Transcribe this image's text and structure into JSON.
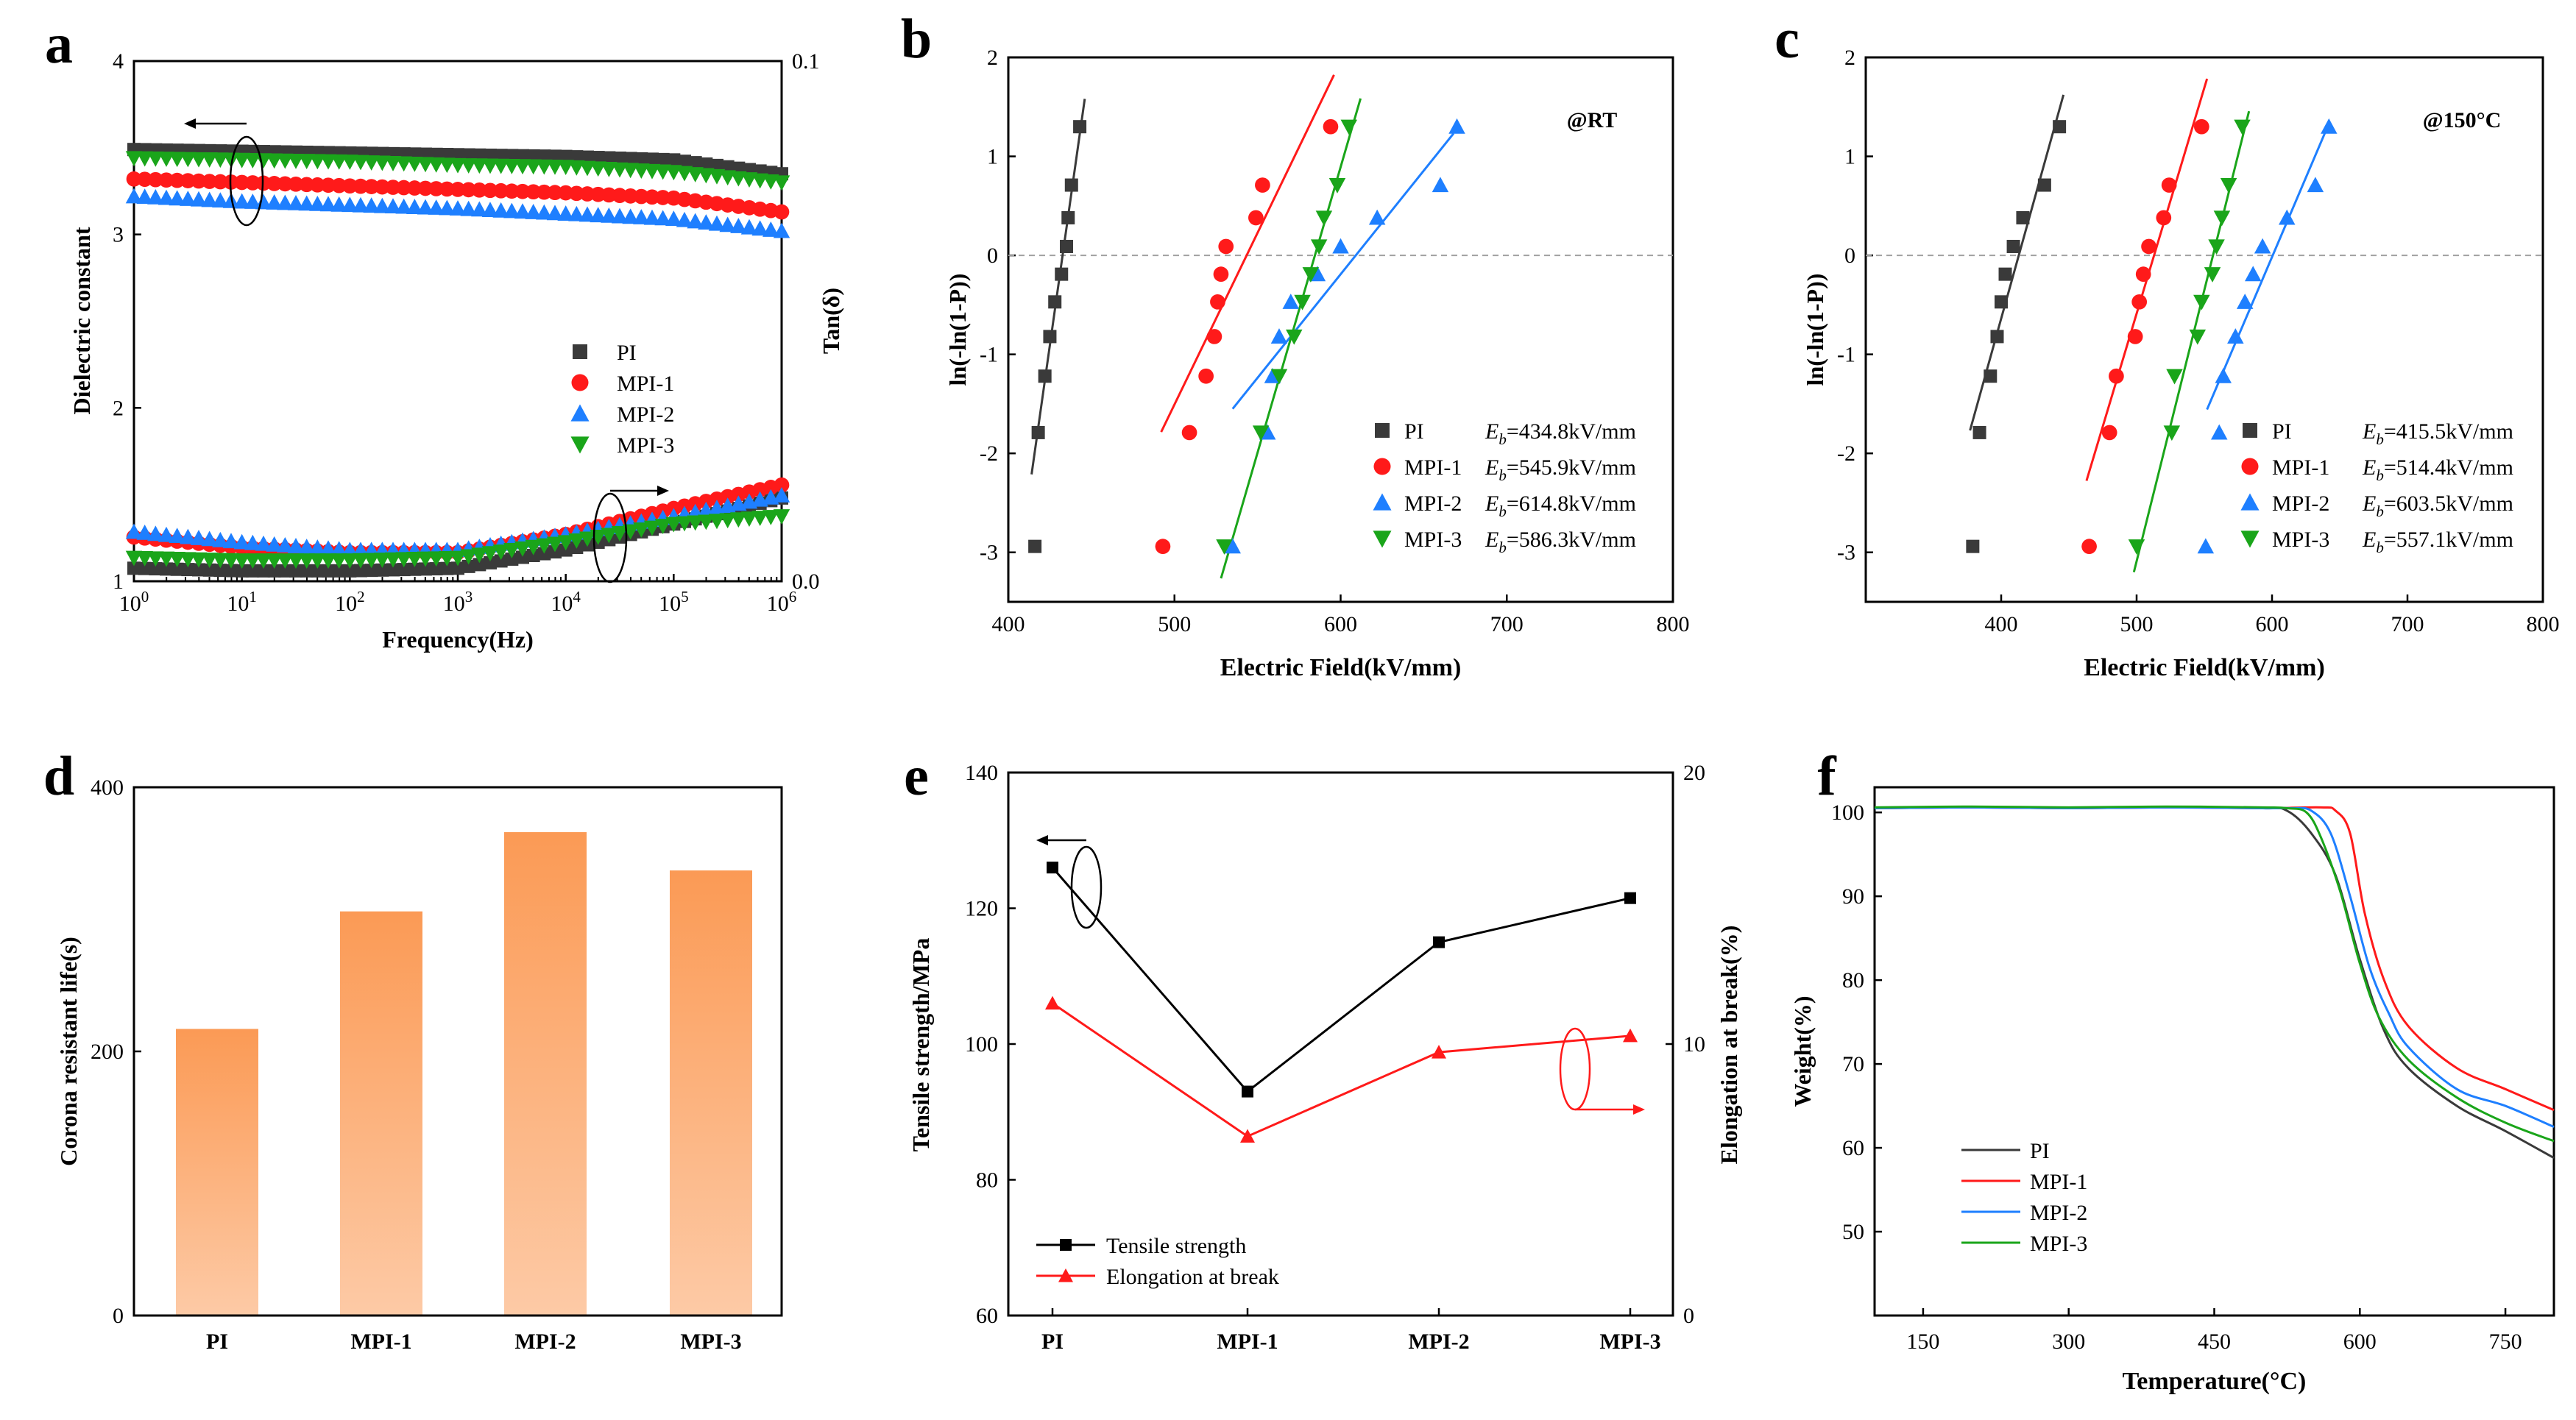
{
  "chart_data": [
    {
      "panel": "a",
      "type": "scatter",
      "xlabel": "Frequency(Hz)",
      "ylabel": "Dielectric constant",
      "ylabel_right": "Tan(δ)",
      "xscale": "log",
      "xlim": [
        1,
        1000000
      ],
      "ylim": [
        1,
        4
      ],
      "ylim_right": [
        0.0,
        0.1
      ],
      "x_ticks": [
        {
          "base": "10",
          "exp": "0"
        },
        {
          "base": "10",
          "exp": "1"
        },
        {
          "base": "10",
          "exp": "2"
        },
        {
          "base": "10",
          "exp": "3"
        },
        {
          "base": "10",
          "exp": "4"
        },
        {
          "base": "10",
          "exp": "5"
        },
        {
          "base": "10",
          "exp": "6"
        }
      ],
      "y_ticks": [
        "1",
        "2",
        "3",
        "4"
      ],
      "y_ticks_right": [
        "0.0",
        "0.1"
      ],
      "legend": [
        "PI",
        "MPI-1",
        "MPI-2",
        "MPI-3"
      ],
      "series": [
        {
          "name": "PI",
          "color": "#3a3a3a",
          "marker": "square",
          "dk": [
            3.49,
            3.48,
            3.47,
            3.46,
            3.45,
            3.43,
            3.35
          ],
          "tan": [
            0.0025,
            0.002,
            0.002,
            0.0025,
            0.006,
            0.011,
            0.016
          ]
        },
        {
          "name": "MPI-1",
          "color": "#ff1a1a",
          "marker": "circle",
          "dk": [
            3.32,
            3.3,
            3.28,
            3.26,
            3.24,
            3.21,
            3.13
          ],
          "tan": [
            0.0085,
            0.0065,
            0.0055,
            0.0055,
            0.009,
            0.014,
            0.0185
          ]
        },
        {
          "name": "MPI-2",
          "color": "#1e7fff",
          "marker": "triangle-up",
          "dk": [
            3.22,
            3.19,
            3.17,
            3.15,
            3.12,
            3.09,
            3.02
          ],
          "tan": [
            0.0095,
            0.0075,
            0.006,
            0.006,
            0.009,
            0.0125,
            0.0165
          ]
        },
        {
          "name": "MPI-3",
          "color": "#1aa51a",
          "marker": "triangle-down",
          "dk": [
            3.44,
            3.43,
            3.42,
            3.4,
            3.39,
            3.36,
            3.3
          ],
          "tan": [
            0.0045,
            0.004,
            0.004,
            0.0045,
            0.0075,
            0.011,
            0.0125
          ]
        }
      ]
    },
    {
      "panel": "b",
      "type": "scatter",
      "annotation": "@RT",
      "xlabel": "Electric Field(kV/mm)",
      "ylabel": "ln(-ln(1-P))",
      "xlim": [
        400,
        800
      ],
      "ylim": [
        -3.5,
        2
      ],
      "x_ticks": [
        "400",
        "500",
        "600",
        "700",
        "800"
      ],
      "y_ticks": [
        "2",
        "1",
        "0",
        "-1",
        "-2",
        "-3"
      ],
      "y_probs": [
        -2.94,
        -1.79,
        -1.22,
        -0.82,
        -0.47,
        -0.19,
        0.09,
        0.38,
        0.71,
        1.3
      ],
      "eb_prefix": "E",
      "eb_sub": "b",
      "series": [
        {
          "name": "PI",
          "eb": "=434.8kV/mm",
          "color": "#3a3a3a",
          "marker": "square",
          "x": [
            416,
            418,
            422,
            425,
            428,
            432,
            435,
            436,
            438,
            443
          ],
          "fit_x": [
            414,
            446
          ]
        },
        {
          "name": "MPI-1",
          "eb": "=545.9kV/mm",
          "color": "#ff1a1a",
          "marker": "circle",
          "x": [
            493,
            509,
            519,
            524,
            526,
            528,
            531,
            549,
            553,
            594
          ],
          "fit_x": [
            492,
            596
          ]
        },
        {
          "name": "MPI-2",
          "eb": "=614.8kV/mm",
          "color": "#1e7fff",
          "marker": "triangle-up",
          "x": [
            535,
            556,
            559,
            563,
            570,
            586,
            600,
            622,
            660,
            670
          ],
          "fit_x": [
            535,
            668
          ]
        },
        {
          "name": "MPI-3",
          "eb": "=586.3kV/mm",
          "color": "#1aa51a",
          "marker": "triangle-down",
          "x": [
            530,
            552,
            563,
            572,
            577,
            582,
            587,
            590,
            598,
            605
          ],
          "fit_x": [
            528,
            612
          ]
        }
      ]
    },
    {
      "panel": "c",
      "type": "scatter",
      "annotation": "@150°C",
      "xlabel": "Electric Field(kV/mm)",
      "ylabel": "ln(-ln(1-P))",
      "xlim": [
        300,
        800
      ],
      "ylim": [
        -3.5,
        2
      ],
      "x_ticks": [
        "400",
        "500",
        "600",
        "700",
        "800"
      ],
      "y_ticks": [
        "2",
        "1",
        "0",
        "-1",
        "-2",
        "-3"
      ],
      "y_probs": [
        -2.94,
        -1.79,
        -1.22,
        -0.82,
        -0.47,
        -0.19,
        0.09,
        0.38,
        0.71,
        1.3
      ],
      "eb_prefix": "E",
      "eb_sub": "b",
      "series": [
        {
          "name": "PI",
          "eb": "=415.5kV/mm",
          "color": "#3a3a3a",
          "marker": "square",
          "x": [
            379,
            384,
            392,
            397,
            400,
            403,
            409,
            416,
            432,
            443
          ],
          "fit_x": [
            377,
            446
          ]
        },
        {
          "name": "MPI-1",
          "eb": "=514.4kV/mm",
          "color": "#ff1a1a",
          "marker": "circle",
          "x": [
            465,
            480,
            485,
            499,
            502,
            505,
            509,
            520,
            524,
            548
          ],
          "fit_x": [
            463,
            552
          ]
        },
        {
          "name": "MPI-2",
          "eb": "=603.5kV/mm",
          "color": "#1e7fff",
          "marker": "triangle-up",
          "x": [
            551,
            561,
            564,
            573,
            580,
            586,
            593,
            611,
            632,
            642
          ],
          "fit_x": [
            552,
            641
          ]
        },
        {
          "name": "MPI-3",
          "eb": "=557.1kV/mm",
          "color": "#1aa51a",
          "marker": "triangle-down",
          "x": [
            500,
            526,
            528,
            545,
            548,
            556,
            559,
            563,
            568,
            578
          ],
          "fit_x": [
            498,
            583
          ]
        }
      ]
    },
    {
      "panel": "d",
      "type": "bar",
      "ylabel": "Corona resistant life(s)",
      "ylim": [
        0,
        400
      ],
      "y_ticks": [
        "0",
        "200",
        "400"
      ],
      "categories": [
        "PI",
        "MPI-1",
        "MPI-2",
        "MPI-3"
      ],
      "values": [
        217,
        306,
        366,
        337
      ]
    },
    {
      "panel": "e",
      "type": "line",
      "ylabel": "Tensile strength/MPa",
      "ylabel_right": "Elongation at break(%)",
      "categories": [
        "PI",
        "MPI-1",
        "MPI-2",
        "MPI-3"
      ],
      "ylim": [
        60,
        140
      ],
      "ylim_right": [
        0,
        20
      ],
      "y_ticks": [
        "60",
        "80",
        "100",
        "120",
        "140"
      ],
      "y_ticks_right": [
        "0",
        "10",
        "20"
      ],
      "series": [
        {
          "name": "Tensile strength",
          "color": "#000000",
          "marker": "square",
          "axis": "left",
          "values": [
            126,
            93,
            115,
            121.5
          ]
        },
        {
          "name": "Elongation at break",
          "color": "#ff1a1a",
          "marker": "triangle-up",
          "axis": "right",
          "values": [
            11.5,
            6.6,
            9.7,
            10.3
          ]
        }
      ]
    },
    {
      "panel": "f",
      "type": "line",
      "xlabel": "Temperature(°C)",
      "ylabel": "Weight(%)",
      "xlim": [
        100,
        800
      ],
      "ylim": [
        40,
        103
      ],
      "x_ticks": [
        "150",
        "300",
        "450",
        "600",
        "750"
      ],
      "y_ticks": [
        "50",
        "60",
        "70",
        "80",
        "90",
        "100"
      ],
      "legend": [
        "PI",
        "MPI-1",
        "MPI-2",
        "MPI-3"
      ],
      "series": [
        {
          "name": "PI",
          "color": "#3a3a3a",
          "x": [
            100,
            200,
            300,
            400,
            500,
            525,
            550,
            575,
            600,
            625,
            650,
            700,
            750,
            800
          ],
          "y": [
            100.5,
            100.6,
            100.5,
            100.6,
            100.5,
            100.2,
            97.5,
            92.5,
            82.5,
            74.0,
            69.5,
            65.0,
            62.0,
            58.8
          ]
        },
        {
          "name": "MPI-1",
          "color": "#ff1a1a",
          "x": [
            100,
            200,
            300,
            400,
            500,
            560,
            575,
            590,
            605,
            625,
            650,
            700,
            750,
            800
          ],
          "y": [
            100.5,
            100.6,
            100.5,
            100.6,
            100.5,
            100.6,
            100.2,
            97.5,
            88.0,
            80.0,
            74.5,
            69.5,
            67.0,
            64.5
          ]
        },
        {
          "name": "MPI-2",
          "color": "#1e7fff",
          "x": [
            100,
            200,
            300,
            400,
            500,
            530,
            550,
            570,
            590,
            610,
            630,
            650,
            700,
            750,
            800
          ],
          "y": [
            100.5,
            100.6,
            100.5,
            100.6,
            100.5,
            100.5,
            100.2,
            97.5,
            90.0,
            81.5,
            76.0,
            72.0,
            67.0,
            65.0,
            62.5
          ]
        },
        {
          "name": "MPI-3",
          "color": "#1aa51a",
          "x": [
            100,
            200,
            300,
            400,
            500,
            525,
            545,
            560,
            580,
            600,
            620,
            650,
            700,
            750,
            800
          ],
          "y": [
            100.6,
            100.7,
            100.6,
            100.7,
            100.6,
            100.5,
            100.0,
            97.0,
            90.5,
            82.0,
            75.5,
            70.5,
            66.0,
            63.0,
            60.8
          ]
        }
      ]
    }
  ]
}
